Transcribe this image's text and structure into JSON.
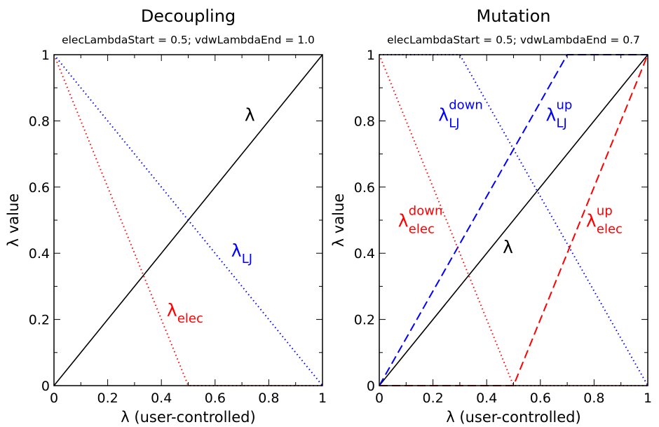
{
  "chart_data": [
    {
      "type": "line",
      "title": "Decoupling",
      "subtitle": "elecLambdaStart = 0.5; vdwLambdaEnd = 1.0",
      "xlabel": "λ (user-controlled)",
      "ylabel": "λ value",
      "xlim": [
        0,
        1
      ],
      "ylim": [
        0,
        1
      ],
      "x_ticks": [
        "0",
        "0.2",
        "0.4",
        "0.6",
        "0.8",
        "1"
      ],
      "y_ticks": [
        "0",
        "0.2",
        "0.4",
        "0.6",
        "0.8",
        "1"
      ],
      "grid": false,
      "series": [
        {
          "color": "#000000",
          "style": "solid",
          "x": [
            0,
            1
          ],
          "y": [
            0,
            1
          ]
        },
        {
          "color": "#ff0000",
          "style": "dotted",
          "x": [
            0,
            0.5,
            1
          ],
          "y": [
            1,
            0,
            0
          ]
        },
        {
          "color": "#0000ff",
          "style": "dotted",
          "x": [
            0,
            1
          ],
          "y": [
            1,
            0
          ]
        }
      ],
      "annotations": [
        {
          "text": "λ",
          "sub": "",
          "sup": "",
          "color": "#000000",
          "x": 0.71,
          "y": 0.8
        },
        {
          "text": "λ",
          "sub": "LJ",
          "sup": "",
          "color": "#0000ff",
          "x": 0.66,
          "y": 0.39
        },
        {
          "text": "λ",
          "sub": "elec",
          "sup": "",
          "color": "#ff0000",
          "x": 0.42,
          "y": 0.21
        }
      ]
    },
    {
      "type": "line",
      "title": "Mutation",
      "subtitle": "elecLambdaStart = 0.5; vdwLambdaEnd = 0.7",
      "xlabel": "λ (user-controlled)",
      "ylabel": "λ value",
      "xlim": [
        0,
        1
      ],
      "ylim": [
        0,
        1
      ],
      "x_ticks": [
        "0",
        "0.2",
        "0.4",
        "0.6",
        "0.8",
        "1"
      ],
      "y_ticks": [
        "0",
        "0.2",
        "0.4",
        "0.6",
        "0.8",
        "1"
      ],
      "grid": false,
      "series": [
        {
          "color": "#000000",
          "style": "solid",
          "x": [
            0,
            1
          ],
          "y": [
            0,
            1
          ]
        },
        {
          "color": "#0000ff",
          "style": "dashed",
          "x": [
            0,
            0.7,
            1
          ],
          "y": [
            0,
            1,
            1
          ]
        },
        {
          "color": "#0000ff",
          "style": "dotted",
          "x": [
            0,
            0.3,
            1
          ],
          "y": [
            1,
            1,
            0
          ]
        },
        {
          "color": "#ff0000",
          "style": "dashed",
          "x": [
            0,
            0.5,
            1
          ],
          "y": [
            0,
            0,
            1
          ]
        },
        {
          "color": "#ff0000",
          "style": "dotted",
          "x": [
            0,
            0.5,
            1
          ],
          "y": [
            1,
            0,
            0
          ]
        }
      ],
      "annotations": [
        {
          "text": "λ",
          "sub": "LJ",
          "sup": "down",
          "color": "#0000ff",
          "x": 0.22,
          "y": 0.8
        },
        {
          "text": "λ",
          "sub": "LJ",
          "sup": "up",
          "color": "#0000ff",
          "x": 0.62,
          "y": 0.8
        },
        {
          "text": "λ",
          "sub": "elec",
          "sup": "down",
          "color": "#ff0000",
          "x": 0.07,
          "y": 0.48
        },
        {
          "text": "λ",
          "sub": "elec",
          "sup": "up",
          "color": "#ff0000",
          "x": 0.77,
          "y": 0.48
        },
        {
          "text": "λ",
          "sub": "",
          "sup": "",
          "color": "#000000",
          "x": 0.46,
          "y": 0.4
        }
      ]
    }
  ]
}
